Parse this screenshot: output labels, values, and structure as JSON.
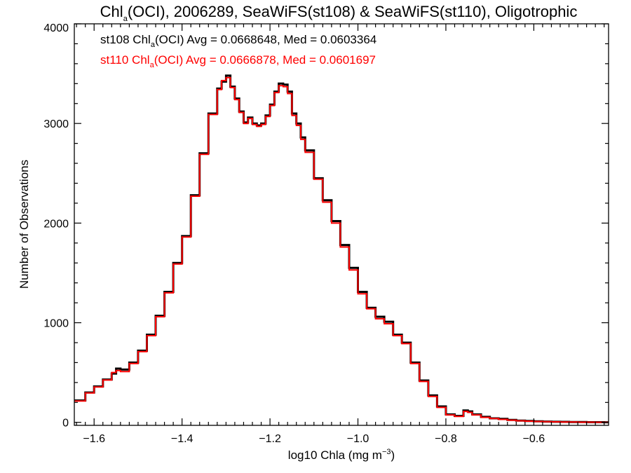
{
  "chart_data": {
    "type": "line",
    "title_parts": {
      "pre": "Chl",
      "sub": "a",
      "post": "(OCI), 2006289, SeaWiFS(st108) & SeaWiFS(st110), Oligotrophic"
    },
    "xlabel_parts": {
      "pre": "log10 Chla (mg m",
      "sup": "−3",
      "post": ")"
    },
    "ylabel": "Number of Observations",
    "xlim": [
      -1.645,
      -0.43
    ],
    "ylim": [
      -30,
      4000
    ],
    "x_ticks": [
      -1.6,
      -1.4,
      -1.2,
      -1.0,
      -0.8,
      -0.6
    ],
    "x_tick_labels": [
      "−1.6",
      "−1.4",
      "−1.2",
      "−1.0",
      "−0.8",
      "−0.6"
    ],
    "y_ticks": [
      0,
      1000,
      2000,
      3000,
      4000
    ],
    "y_tick_labels": [
      "0",
      "1000",
      "2000",
      "3000",
      "4000"
    ],
    "grid": false,
    "annotations": [
      {
        "pre": "st108 Chl",
        "sub": "a",
        "post": "(OCI) Avg = 0.0668648, Med = 0.0603364",
        "color": "#000000"
      },
      {
        "pre": "st110 Chl",
        "sub": "a",
        "post": "(OCI) Avg = 0.0666878, Med = 0.0601697",
        "color": "#ff0000"
      }
    ],
    "series": [
      {
        "color": "#000000",
        "x": [
          -1.645,
          -1.62,
          -1.6,
          -1.58,
          -1.56,
          -1.55,
          -1.54,
          -1.52,
          -1.5,
          -1.48,
          -1.46,
          -1.44,
          -1.42,
          -1.4,
          -1.38,
          -1.36,
          -1.34,
          -1.32,
          -1.31,
          -1.3,
          -1.29,
          -1.28,
          -1.27,
          -1.26,
          -1.25,
          -1.24,
          -1.23,
          -1.22,
          -1.21,
          -1.2,
          -1.19,
          -1.18,
          -1.17,
          -1.16,
          -1.15,
          -1.14,
          -1.13,
          -1.12,
          -1.1,
          -1.08,
          -1.06,
          -1.04,
          -1.02,
          -1.0,
          -0.98,
          -0.96,
          -0.94,
          -0.92,
          -0.9,
          -0.88,
          -0.86,
          -0.84,
          -0.82,
          -0.8,
          -0.78,
          -0.76,
          -0.75,
          -0.74,
          -0.72,
          -0.7,
          -0.68,
          -0.66,
          -0.64,
          -0.62,
          -0.6,
          -0.58,
          -0.56,
          -0.54,
          -0.52,
          -0.5,
          -0.48,
          -0.46,
          -0.44,
          -0.43
        ],
        "y": [
          220,
          300,
          360,
          430,
          490,
          540,
          530,
          600,
          720,
          880,
          1070,
          1310,
          1600,
          1870,
          2280,
          2700,
          3100,
          3350,
          3420,
          3480,
          3370,
          3250,
          3120,
          3010,
          3060,
          3000,
          2980,
          3000,
          3080,
          3190,
          3320,
          3400,
          3390,
          3320,
          3100,
          3000,
          2860,
          2730,
          2450,
          2230,
          2020,
          1780,
          1550,
          1310,
          1150,
          1060,
          1010,
          880,
          800,
          600,
          420,
          270,
          160,
          80,
          65,
          120,
          110,
          80,
          55,
          40,
          35,
          25,
          18,
          14,
          10,
          8,
          6,
          5,
          4,
          3,
          2,
          2,
          1,
          1
        ]
      },
      {
        "color": "#ff0000",
        "x": [
          -1.645,
          -1.62,
          -1.6,
          -1.58,
          -1.56,
          -1.55,
          -1.54,
          -1.52,
          -1.5,
          -1.48,
          -1.46,
          -1.44,
          -1.42,
          -1.4,
          -1.38,
          -1.36,
          -1.34,
          -1.32,
          -1.31,
          -1.3,
          -1.29,
          -1.28,
          -1.27,
          -1.26,
          -1.25,
          -1.24,
          -1.23,
          -1.22,
          -1.21,
          -1.2,
          -1.19,
          -1.18,
          -1.17,
          -1.16,
          -1.15,
          -1.14,
          -1.13,
          -1.12,
          -1.1,
          -1.08,
          -1.06,
          -1.04,
          -1.02,
          -1.0,
          -0.98,
          -0.96,
          -0.94,
          -0.92,
          -0.9,
          -0.88,
          -0.86,
          -0.84,
          -0.82,
          -0.8,
          -0.78,
          -0.76,
          -0.75,
          -0.74,
          -0.72,
          -0.7,
          -0.68,
          -0.66,
          -0.64,
          -0.62,
          -0.6,
          -0.58,
          -0.56,
          -0.54,
          -0.52,
          -0.5,
          -0.48,
          -0.46,
          -0.44,
          -0.43
        ],
        "y": [
          215,
          295,
          355,
          425,
          500,
          520,
          510,
          590,
          710,
          870,
          1060,
          1300,
          1590,
          1860,
          2270,
          2690,
          3090,
          3340,
          3430,
          3460,
          3360,
          3240,
          3110,
          3000,
          3050,
          2990,
          2970,
          2990,
          3070,
          3180,
          3310,
          3380,
          3370,
          3300,
          3080,
          2980,
          2840,
          2710,
          2440,
          2210,
          2000,
          1760,
          1530,
          1290,
          1140,
          1040,
          990,
          870,
          790,
          590,
          410,
          260,
          150,
          75,
          60,
          110,
          100,
          75,
          50,
          38,
          30,
          22,
          16,
          12,
          9,
          7,
          5,
          4,
          3,
          2,
          2,
          1,
          1,
          1
        ]
      }
    ]
  }
}
